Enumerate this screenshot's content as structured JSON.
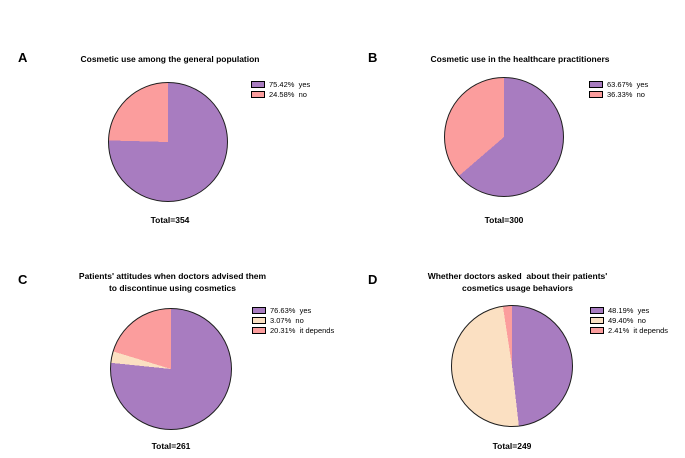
{
  "figure": {
    "background": "#ffffff",
    "palette": {
      "yes_purple": "#a87cc0",
      "no_pink": "#fb9d9d",
      "cream": "#fbe0c2",
      "outline": "#1f1f1f"
    }
  },
  "chart_data": [
    {
      "type": "pie",
      "panel_label": "A",
      "title": "Cosmetic use among the general population",
      "total_label": "Total=354",
      "total": 354,
      "legend_position": "right",
      "start_angle_deg": 0,
      "direction": "clockwise",
      "slices": [
        {
          "label": "yes",
          "pct": 75.42,
          "pct_label": "75.42%",
          "color": "#a87cc0"
        },
        {
          "label": "no",
          "pct": 24.58,
          "pct_label": "24.58%",
          "color": "#fb9d9d"
        }
      ]
    },
    {
      "type": "pie",
      "panel_label": "B",
      "title": "Cosmetic use in the healthcare practitioners",
      "total_label": "Total=300",
      "total": 300,
      "legend_position": "right",
      "start_angle_deg": 0,
      "direction": "clockwise",
      "slices": [
        {
          "label": "yes",
          "pct": 63.67,
          "pct_label": "63.67%",
          "color": "#a87cc0"
        },
        {
          "label": "no",
          "pct": 36.33,
          "pct_label": "36.33%",
          "color": "#fb9d9d"
        }
      ]
    },
    {
      "type": "pie",
      "panel_label": "C",
      "title": "Patients' attitudes when doctors advised them\nto discontinue using cosmetics",
      "total_label": "Total=261",
      "total": 261,
      "legend_position": "right",
      "start_angle_deg": 0,
      "direction": "clockwise",
      "slices": [
        {
          "label": "yes",
          "pct": 76.63,
          "pct_label": "76.63%",
          "color": "#a87cc0"
        },
        {
          "label": "no",
          "pct": 3.07,
          "pct_label": "3.07%",
          "color": "#fbe0c2"
        },
        {
          "label": "it depends",
          "pct": 20.31,
          "pct_label": "20.31%",
          "color": "#fb9d9d"
        }
      ]
    },
    {
      "type": "pie",
      "panel_label": "D",
      "title": "Whether doctors asked  about their patients'\ncosmetics usage behaviors",
      "total_label": "Total=249",
      "total": 249,
      "legend_position": "right",
      "start_angle_deg": 0,
      "direction": "clockwise",
      "slices": [
        {
          "label": "yes",
          "pct": 48.19,
          "pct_label": "48.19%",
          "color": "#a87cc0"
        },
        {
          "label": "no",
          "pct": 49.4,
          "pct_label": "49.40%",
          "color": "#fbe0c2"
        },
        {
          "label": "it depends",
          "pct": 2.41,
          "pct_label": "2.41%",
          "color": "#fb9d9d"
        }
      ]
    }
  ]
}
